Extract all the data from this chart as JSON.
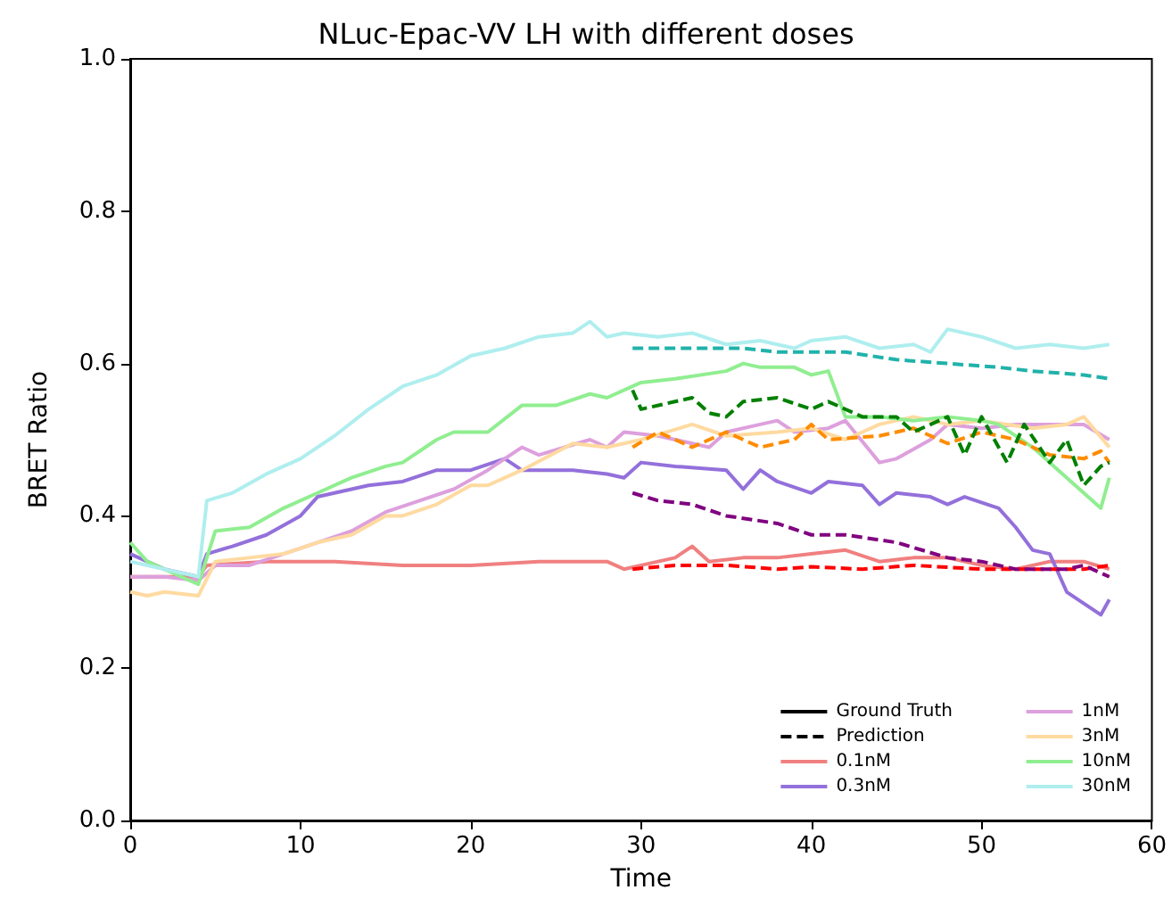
{
  "chart_data": {
    "type": "line",
    "title": "NLuc-Epac-VV LH with different doses",
    "xlabel": "Time",
    "ylabel": "BRET Ratio",
    "xlim": [
      0,
      60
    ],
    "xticks": [
      0,
      10,
      20,
      30,
      40,
      50,
      60
    ],
    "ylim": [
      0,
      1
    ],
    "yticks": [
      {
        "value": 0,
        "label": "0.0"
      },
      {
        "value": 0.2,
        "label": "0.2"
      },
      {
        "value": 0.4,
        "label": "0.4"
      },
      {
        "value": 0.6,
        "label": "0.6"
      },
      {
        "value": 0.8,
        "label": "0.8"
      },
      {
        "value": 1,
        "label": "1.0"
      }
    ],
    "grid": false,
    "legend": "bottom right",
    "marker": "none",
    "series": [
      {
        "name": "Ground Truth",
        "color": "#000000",
        "line_style": "solid"
      },
      {
        "name": "Prediction",
        "color": "#000000",
        "line_style": "dashed"
      },
      {
        "name": "0.1nM",
        "color": "#f08080",
        "line_style": "solid",
        "x": [
          0,
          2,
          4,
          4.5,
          8,
          12,
          16,
          20,
          24,
          28,
          29,
          30,
          32,
          33,
          34,
          36,
          38,
          40,
          42,
          44,
          46,
          48,
          50,
          52,
          54,
          56,
          57.5
        ],
        "values": [
          0.32,
          0.32,
          0.32,
          0.335,
          0.34,
          0.34,
          0.335,
          0.335,
          0.34,
          0.34,
          0.33,
          0.335,
          0.345,
          0.36,
          0.34,
          0.345,
          0.345,
          0.35,
          0.355,
          0.34,
          0.345,
          0.345,
          0.335,
          0.33,
          0.34,
          0.34,
          0.33
        ]
      },
      {
        "name": "0.3nM",
        "color": "#9370db",
        "line_style": "solid",
        "x": [
          0,
          2,
          4,
          4.5,
          6,
          8,
          10,
          11,
          12,
          14,
          16,
          18,
          20,
          22,
          23,
          26,
          28,
          29,
          30,
          32,
          35,
          36,
          37,
          38,
          40,
          41,
          43,
          44,
          45,
          47,
          48,
          49,
          51,
          52,
          53,
          54,
          55,
          56,
          57,
          57.5
        ],
        "values": [
          0.35,
          0.33,
          0.32,
          0.35,
          0.36,
          0.375,
          0.4,
          0.425,
          0.43,
          0.44,
          0.445,
          0.46,
          0.46,
          0.475,
          0.46,
          0.46,
          0.455,
          0.45,
          0.47,
          0.465,
          0.46,
          0.435,
          0.46,
          0.445,
          0.43,
          0.445,
          0.44,
          0.415,
          0.43,
          0.425,
          0.415,
          0.425,
          0.41,
          0.385,
          0.355,
          0.35,
          0.3,
          0.285,
          0.27,
          0.29
        ]
      },
      {
        "name": "1nM",
        "color": "#dda0dd",
        "line_style": "solid",
        "x": [
          0,
          2,
          4,
          5,
          7,
          9,
          11,
          13,
          15,
          17,
          19,
          21,
          23,
          24,
          27,
          28,
          29,
          31,
          34,
          35,
          37,
          38,
          39,
          41,
          42,
          44,
          45,
          47,
          48,
          50,
          52,
          55,
          56,
          57.5
        ],
        "values": [
          0.32,
          0.32,
          0.315,
          0.335,
          0.335,
          0.35,
          0.365,
          0.38,
          0.405,
          0.42,
          0.435,
          0.46,
          0.49,
          0.48,
          0.5,
          0.49,
          0.51,
          0.505,
          0.49,
          0.51,
          0.52,
          0.525,
          0.51,
          0.515,
          0.525,
          0.47,
          0.475,
          0.5,
          0.52,
          0.515,
          0.52,
          0.52,
          0.52,
          0.5
        ]
      },
      {
        "name": "3nM",
        "color": "#ffdaa0",
        "line_style": "solid",
        "x": [
          0,
          1,
          2,
          4,
          5,
          7,
          9,
          11,
          13,
          15,
          16,
          18,
          20,
          21,
          23,
          26,
          28,
          30,
          33,
          35,
          38,
          40,
          42,
          44,
          46,
          48,
          50,
          53,
          55,
          56,
          57.5
        ],
        "values": [
          0.3,
          0.295,
          0.3,
          0.295,
          0.34,
          0.345,
          0.35,
          0.365,
          0.375,
          0.4,
          0.4,
          0.415,
          0.44,
          0.44,
          0.46,
          0.495,
          0.49,
          0.5,
          0.52,
          0.505,
          0.51,
          0.515,
          0.5,
          0.52,
          0.53,
          0.52,
          0.525,
          0.515,
          0.52,
          0.53,
          0.49
        ]
      },
      {
        "name": "10nM",
        "color": "#90ee90",
        "line_style": "solid",
        "x": [
          0,
          1,
          3,
          4,
          5,
          7,
          9,
          11,
          13,
          15,
          16,
          18,
          19,
          21,
          23,
          25,
          27,
          28,
          30,
          32,
          35,
          36,
          37,
          39,
          40,
          41,
          42,
          44,
          46,
          48,
          50,
          51,
          53,
          54.5,
          57,
          57.5
        ],
        "values": [
          0.365,
          0.34,
          0.32,
          0.31,
          0.38,
          0.385,
          0.41,
          0.43,
          0.45,
          0.465,
          0.47,
          0.5,
          0.51,
          0.51,
          0.545,
          0.545,
          0.56,
          0.555,
          0.575,
          0.58,
          0.59,
          0.6,
          0.595,
          0.595,
          0.585,
          0.59,
          0.53,
          0.53,
          0.525,
          0.53,
          0.525,
          0.52,
          0.49,
          0.46,
          0.41,
          0.45
        ]
      },
      {
        "name": "30nM",
        "color": "#afeeee",
        "line_style": "solid",
        "x": [
          0,
          2,
          4,
          4.5,
          6,
          8,
          10,
          12,
          14,
          16,
          18,
          20,
          22,
          24,
          26,
          27,
          28,
          29,
          31,
          33,
          35,
          37,
          39,
          40,
          42,
          44,
          46,
          47,
          48,
          50,
          52,
          54,
          56,
          57.5
        ],
        "values": [
          0.34,
          0.33,
          0.32,
          0.42,
          0.43,
          0.455,
          0.475,
          0.505,
          0.54,
          0.57,
          0.585,
          0.61,
          0.62,
          0.635,
          0.64,
          0.655,
          0.635,
          0.64,
          0.635,
          0.64,
          0.625,
          0.63,
          0.62,
          0.63,
          0.635,
          0.62,
          0.625,
          0.615,
          0.645,
          0.635,
          0.62,
          0.625,
          0.62,
          0.625
        ]
      },
      {
        "color": "#ff0000",
        "line_style": "dashed",
        "x": [
          29.5,
          32,
          35,
          38,
          40,
          43,
          46,
          50,
          53,
          56,
          57.5
        ],
        "values": [
          0.33,
          0.335,
          0.335,
          0.33,
          0.333,
          0.33,
          0.335,
          0.33,
          0.33,
          0.33,
          0.335
        ]
      },
      {
        "color": "#800080",
        "line_style": "dashed",
        "x": [
          29.5,
          31,
          33,
          35,
          38,
          40,
          42,
          45,
          48,
          50,
          52,
          55,
          56,
          57.5
        ],
        "values": [
          0.43,
          0.42,
          0.415,
          0.4,
          0.39,
          0.375,
          0.375,
          0.365,
          0.345,
          0.34,
          0.33,
          0.33,
          0.335,
          0.32
        ]
      },
      {
        "color": "#ff8c00",
        "line_style": "dashed",
        "x": [
          29.5,
          31,
          33,
          35,
          37,
          39,
          40,
          41,
          44,
          46,
          48,
          50,
          52,
          54,
          56,
          57,
          57.5
        ],
        "values": [
          0.49,
          0.51,
          0.49,
          0.51,
          0.49,
          0.5,
          0.52,
          0.5,
          0.505,
          0.515,
          0.495,
          0.51,
          0.5,
          0.48,
          0.475,
          0.485,
          0.47
        ]
      },
      {
        "color": "#008000",
        "line_style": "dashed",
        "x": [
          29.5,
          30,
          32,
          33,
          34,
          35,
          36,
          38,
          40,
          41,
          43,
          45,
          46,
          48,
          49,
          50,
          51.5,
          52.5,
          54,
          55,
          56,
          57,
          57.5
        ],
        "values": [
          0.565,
          0.54,
          0.55,
          0.555,
          0.535,
          0.53,
          0.55,
          0.555,
          0.54,
          0.55,
          0.53,
          0.53,
          0.51,
          0.53,
          0.48,
          0.53,
          0.47,
          0.52,
          0.47,
          0.5,
          0.44,
          0.465,
          0.47
        ]
      },
      {
        "color": "#20b2aa",
        "line_style": "dashed",
        "x": [
          29.5,
          32,
          34,
          36,
          38,
          42,
          45,
          48,
          51,
          53,
          56,
          57.5
        ],
        "values": [
          0.62,
          0.62,
          0.62,
          0.62,
          0.615,
          0.615,
          0.605,
          0.6,
          0.595,
          0.59,
          0.585,
          0.58
        ]
      }
    ]
  }
}
